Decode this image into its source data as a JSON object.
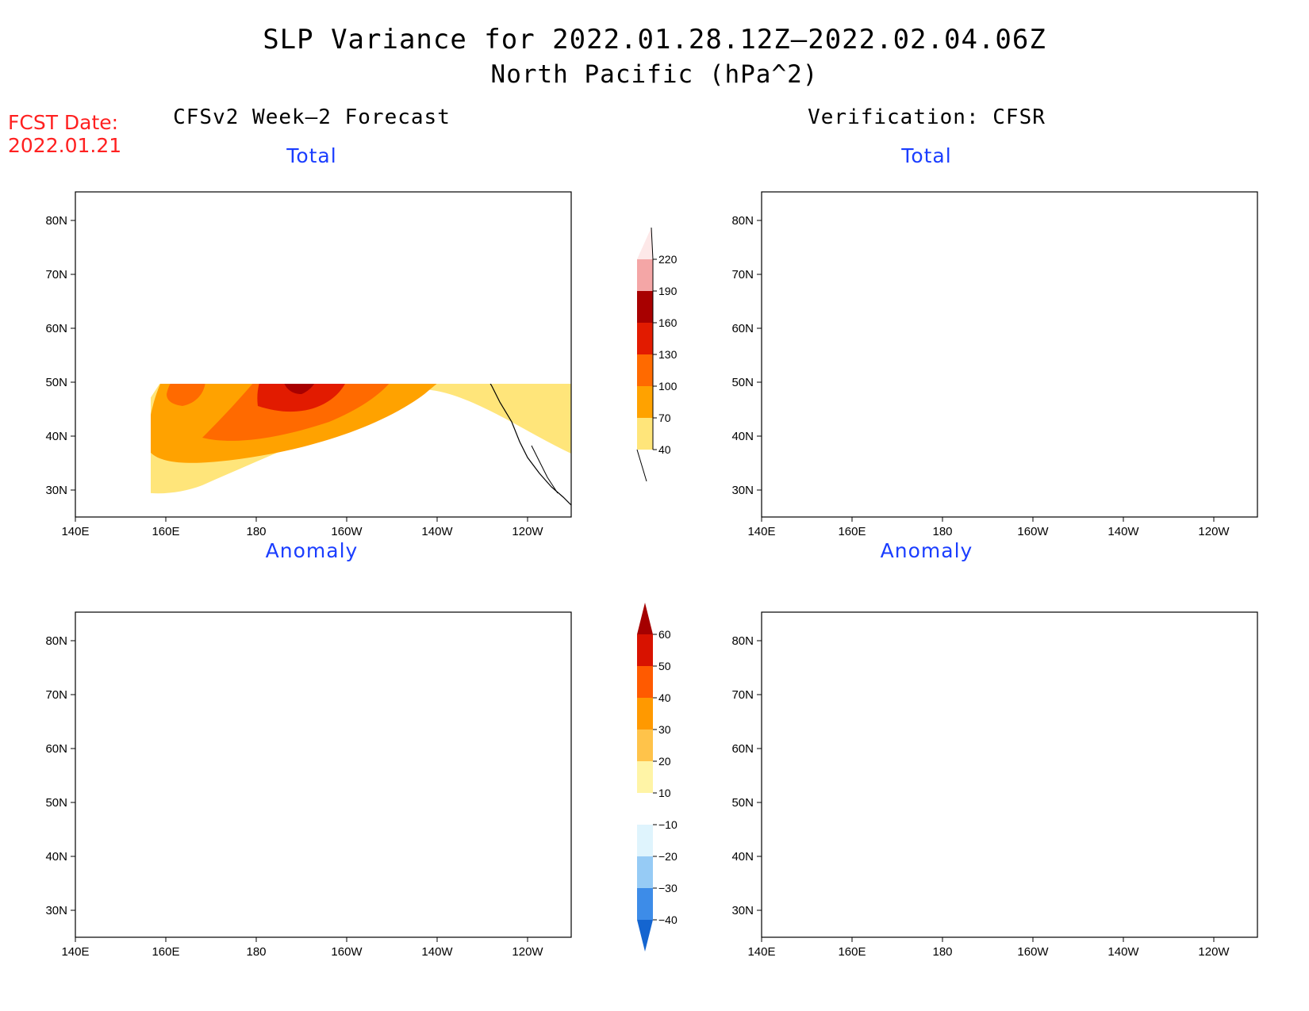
{
  "title": {
    "line1": "SLP Variance for 2022.01.28.12Z–2022.02.04.06Z",
    "line2": "North Pacific (hPa^2)"
  },
  "forecast_date": {
    "label": "FCST Date:",
    "value": "2022.01.21"
  },
  "columns": {
    "left_title": "CFSv2 Week–2 Forecast",
    "right_title": "Verification: CFSR"
  },
  "panels": [
    {
      "id": "forecast-total",
      "label": "Total"
    },
    {
      "id": "verification-total",
      "label": "Total"
    },
    {
      "id": "forecast-anomaly",
      "label": "Anomaly"
    },
    {
      "id": "verification-anomaly",
      "label": "Anomaly"
    }
  ],
  "axes": {
    "lat_labels": [
      "80N",
      "70N",
      "60N",
      "50N",
      "40N",
      "30N"
    ],
    "lon_labels": [
      "140E",
      "160E",
      "180",
      "160W",
      "140W",
      "120W"
    ]
  },
  "colorbars": {
    "total": {
      "levels": [
        "40",
        "70",
        "100",
        "130",
        "160",
        "190",
        "220"
      ],
      "colors": [
        "#ffe57a",
        "#ffa200",
        "#ff6a00",
        "#e21b00",
        "#a80000",
        "#f4a6a6",
        "#fde8e8"
      ]
    },
    "anomaly": {
      "levels": [
        "−40",
        "−30",
        "−20",
        "−10",
        "10",
        "20",
        "30",
        "40",
        "50",
        "60"
      ],
      "colors": [
        "#1465d0",
        "#3d8ce8",
        "#96cbf5",
        "#dff4fd",
        "#ffffff",
        "#fff4a6",
        "#ffc34a",
        "#ff9900",
        "#ff5a00",
        "#d81200",
        "#a50000"
      ]
    }
  }
}
